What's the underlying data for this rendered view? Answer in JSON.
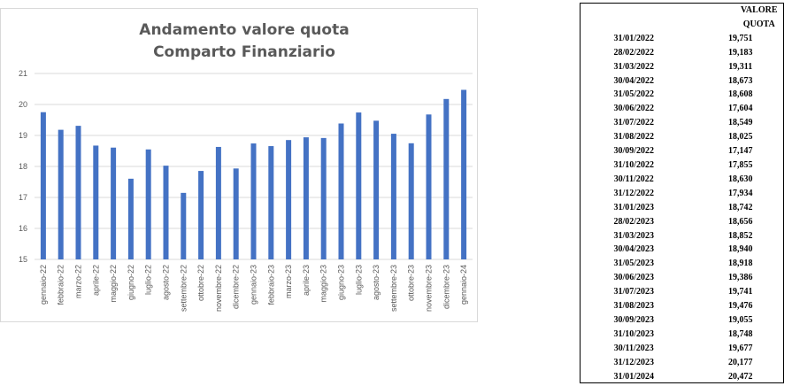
{
  "chart_data": {
    "type": "bar",
    "title": [
      "Andamento valore quota",
      "Comparto Finanziario"
    ],
    "categories": [
      "gennaio-22",
      "febbraio-22",
      "marzo-22",
      "aprile-22",
      "maggio-22",
      "giugno-22",
      "luglio-22",
      "agosto-22",
      "settembre-22",
      "ottobre-22",
      "novembre-22",
      "dicembre-22",
      "gennaio-23",
      "febbraio-23",
      "marzo-23",
      "aprile-23",
      "maggio-23",
      "giugno-23",
      "luglio-23",
      "agosto-23",
      "settembre-23",
      "ottobre-23",
      "novembre-23",
      "dicembre-23",
      "gennaio-24"
    ],
    "values": [
      19.751,
      19.183,
      19.311,
      18.673,
      18.608,
      17.604,
      18.549,
      18.025,
      17.147,
      17.855,
      18.63,
      17.934,
      18.742,
      18.656,
      18.852,
      18.94,
      18.918,
      19.386,
      19.741,
      19.476,
      19.055,
      18.748,
      19.677,
      20.177,
      20.472
    ],
    "yticks": [
      "15",
      "16",
      "17",
      "18",
      "19",
      "20",
      "21"
    ],
    "ylim": [
      15,
      21
    ],
    "grid": true,
    "color": "#4472c4"
  },
  "table": {
    "header": "VALORE QUOTA",
    "rows": [
      {
        "date": "31/01/2022",
        "value": "19,751"
      },
      {
        "date": "28/02/2022",
        "value": "19,183"
      },
      {
        "date": "31/03/2022",
        "value": "19,311"
      },
      {
        "date": "30/04/2022",
        "value": "18,673"
      },
      {
        "date": "31/05/2022",
        "value": "18,608"
      },
      {
        "date": "30/06/2022",
        "value": "17,604"
      },
      {
        "date": "31/07/2022",
        "value": "18,549"
      },
      {
        "date": "31/08/2022",
        "value": "18,025"
      },
      {
        "date": "30/09/2022",
        "value": "17,147"
      },
      {
        "date": "31/10/2022",
        "value": "17,855"
      },
      {
        "date": "30/11/2022",
        "value": "18,630"
      },
      {
        "date": "31/12/2022",
        "value": "17,934"
      },
      {
        "date": "31/01/2023",
        "value": "18,742"
      },
      {
        "date": "28/02/2023",
        "value": "18,656"
      },
      {
        "date": "31/03/2023",
        "value": "18,852"
      },
      {
        "date": "30/04/2023",
        "value": "18,940"
      },
      {
        "date": "31/05/2023",
        "value": "18,918"
      },
      {
        "date": "30/06/2023",
        "value": "19,386"
      },
      {
        "date": "31/07/2023",
        "value": "19,741"
      },
      {
        "date": "31/08/2023",
        "value": "19,476"
      },
      {
        "date": "30/09/2023",
        "value": "19,055"
      },
      {
        "date": "31/10/2023",
        "value": "18,748"
      },
      {
        "date": "30/11/2023",
        "value": "19,677"
      },
      {
        "date": "31/12/2023",
        "value": "20,177"
      },
      {
        "date": "31/01/2024",
        "value": "20,472"
      }
    ]
  }
}
